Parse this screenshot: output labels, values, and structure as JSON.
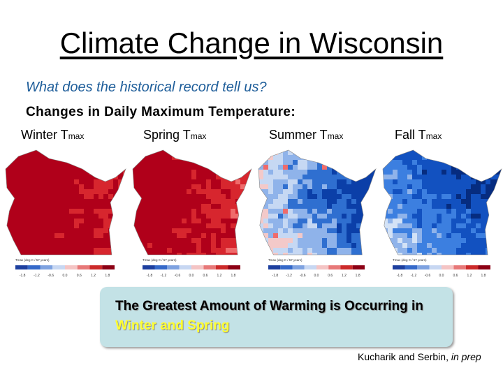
{
  "title": "Climate Change in Wisconsin",
  "subtitle": "What does the historical record tell us?",
  "heading": "Changes in Daily Maximum Temperature:",
  "panels": [
    {
      "label": "Winter T",
      "subscript": "max"
    },
    {
      "label": "Spring T",
      "subscript": "max"
    },
    {
      "label": "Summer T",
      "subscript": "max"
    },
    {
      "label": "Fall T",
      "subscript": "max"
    }
  ],
  "colorbar": {
    "title": "Tmax (deg C / 57 years)",
    "ticks": [
      "-1.8",
      "-1.2",
      "-0.6",
      "0.0",
      "0.6",
      "1.2",
      "1.8"
    ]
  },
  "callout": {
    "text": "The Greatest Amount of Warming is Occurring in",
    "highlight": "Winter and Spring"
  },
  "citation": {
    "authors": "Kucharik and Serbin,",
    "status": "in prep"
  }
}
